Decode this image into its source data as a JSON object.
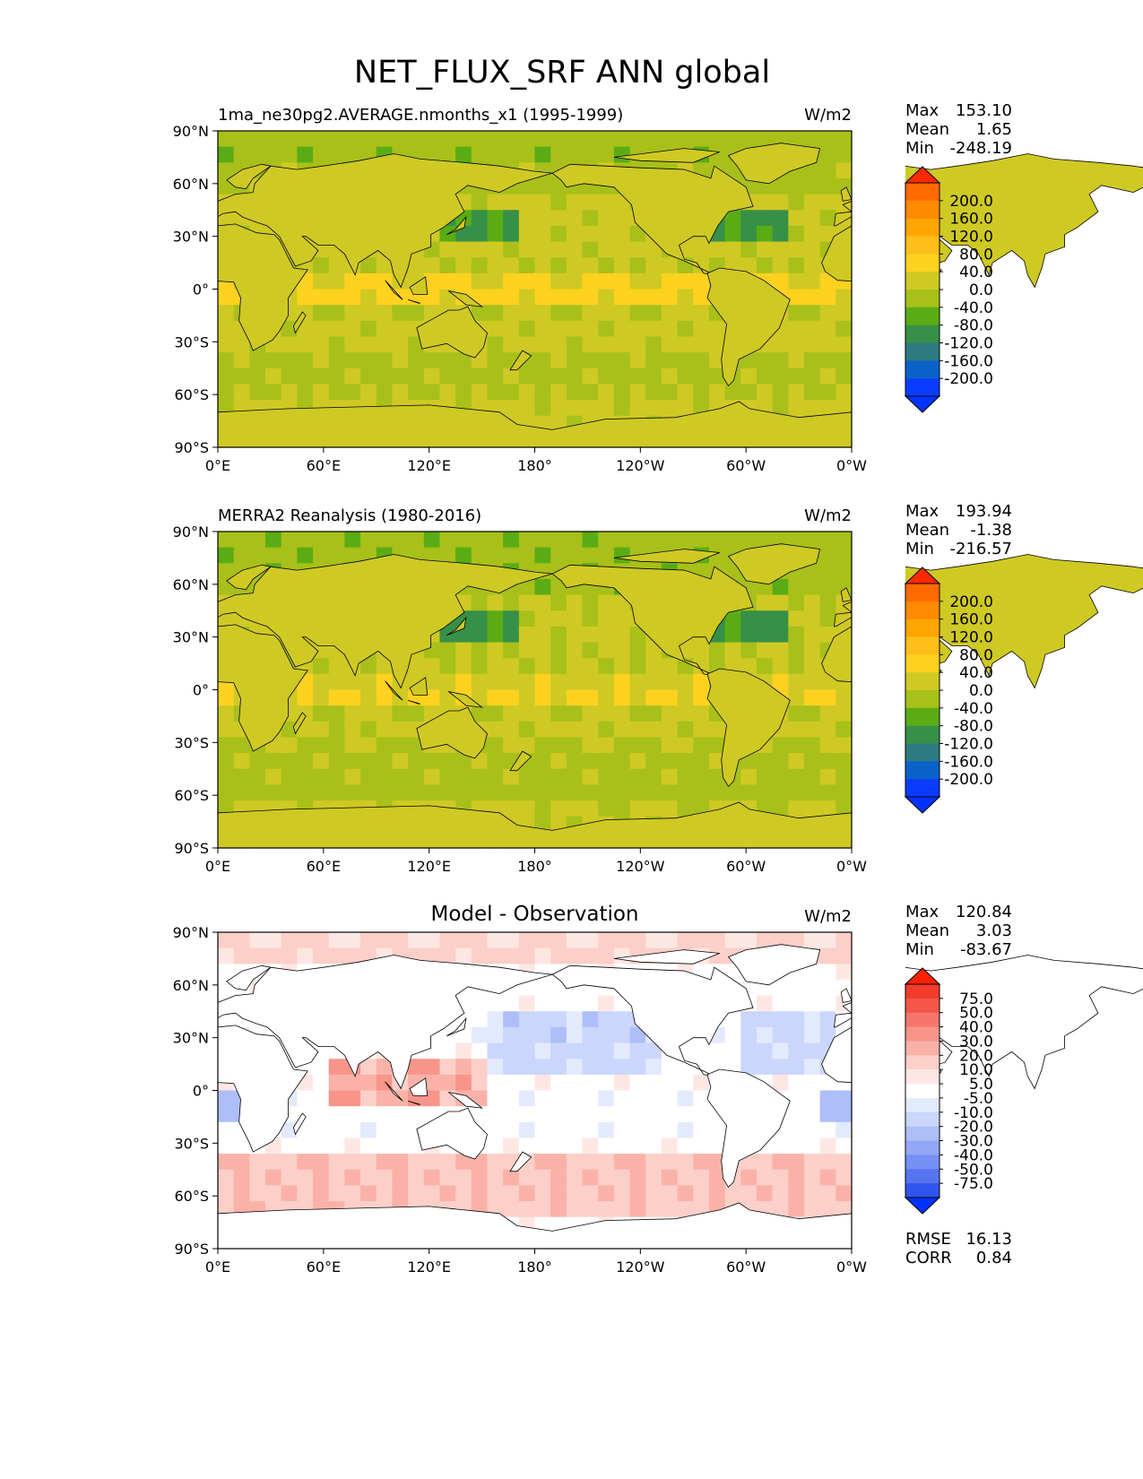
{
  "figure": {
    "title": "NET_FLUX_SRF ANN global"
  },
  "chart_data": [
    {
      "type": "heatmap",
      "title": "",
      "subtitle_left": "1ma_ne30pg2.AVERAGE.nmonths_x1 (1995-1999)",
      "units": "W/m2",
      "stats": [
        {
          "label": "Max",
          "value": "153.10"
        },
        {
          "label": "Mean",
          "value": "1.65"
        },
        {
          "label": "Min",
          "value": "-248.19"
        }
      ],
      "x_ticks": [
        "0°E",
        "60°E",
        "120°E",
        "180°",
        "120°W",
        "60°W",
        "0°W"
      ],
      "y_ticks": [
        "90°N",
        "60°N",
        "30°N",
        "0°",
        "30°S",
        "60°S",
        "90°S"
      ],
      "xlim": [
        0,
        360
      ],
      "ylim": [
        -90,
        90
      ],
      "colorbar": {
        "extend": "both",
        "labels": [
          "200.0",
          "160.0",
          "120.0",
          "80.0",
          "40.0",
          "0.0",
          "-40.0",
          "-80.0",
          "-120.0",
          "-160.0",
          "-200.0"
        ],
        "colors": [
          "#ff6a00",
          "#ff8a00",
          "#ffa500",
          "#ffbe1a",
          "#ffd21f",
          "#cfc924",
          "#a8c019",
          "#5aac14",
          "#379048",
          "#2b7b80",
          "#0a62c9",
          "#0a3cff"
        ],
        "over_color": "#ff2a00",
        "under_color": "#0033ff"
      },
      "field": "model"
    },
    {
      "type": "heatmap",
      "title": "",
      "subtitle_left": "MERRA2 Reanalysis (1980-2016)",
      "units": "W/m2",
      "stats": [
        {
          "label": "Max",
          "value": "193.94"
        },
        {
          "label": "Mean",
          "value": "-1.38"
        },
        {
          "label": "Min",
          "value": "-216.57"
        }
      ],
      "x_ticks": [
        "0°E",
        "60°E",
        "120°E",
        "180°",
        "120°W",
        "60°W",
        "0°W"
      ],
      "y_ticks": [
        "90°N",
        "60°N",
        "30°N",
        "0°",
        "30°S",
        "60°S",
        "90°S"
      ],
      "xlim": [
        0,
        360
      ],
      "ylim": [
        -90,
        90
      ],
      "colorbar": {
        "extend": "both",
        "labels": [
          "200.0",
          "160.0",
          "120.0",
          "80.0",
          "40.0",
          "0.0",
          "-40.0",
          "-80.0",
          "-120.0",
          "-160.0",
          "-200.0"
        ],
        "colors": [
          "#ff6a00",
          "#ff8a00",
          "#ffa500",
          "#ffbe1a",
          "#ffd21f",
          "#cfc924",
          "#a8c019",
          "#5aac14",
          "#379048",
          "#2b7b80",
          "#0a62c9",
          "#0a3cff"
        ],
        "over_color": "#ff2a00",
        "under_color": "#0033ff"
      },
      "field": "obs"
    },
    {
      "type": "heatmap",
      "title": "Model - Observation",
      "subtitle_left": "",
      "units": "W/m2",
      "stats": [
        {
          "label": "Max",
          "value": "120.84"
        },
        {
          "label": "Mean",
          "value": "3.03"
        },
        {
          "label": "Min",
          "value": "-83.67"
        }
      ],
      "extra_stats": [
        {
          "label": "RMSE",
          "value": "16.13"
        },
        {
          "label": "CORR",
          "value": "0.84"
        }
      ],
      "x_ticks": [
        "0°E",
        "60°E",
        "120°E",
        "180°",
        "120°W",
        "60°W",
        "0°W"
      ],
      "y_ticks": [
        "90°N",
        "60°N",
        "30°N",
        "0°",
        "30°S",
        "60°S",
        "90°S"
      ],
      "xlim": [
        0,
        360
      ],
      "ylim": [
        -90,
        90
      ],
      "colorbar": {
        "extend": "both",
        "labels": [
          "75.0",
          "50.0",
          "40.0",
          "30.0",
          "20.0",
          "10.0",
          "5.0",
          "-5.0",
          "-10.0",
          "-20.0",
          "-30.0",
          "-40.0",
          "-50.0",
          "-75.0"
        ],
        "colors": [
          "#f23c2e",
          "#f4564a",
          "#f6766b",
          "#f8958a",
          "#fab2a8",
          "#fccfc8",
          "#fee7e3",
          "#ffffff",
          "#e4eafd",
          "#cad6fb",
          "#aebef8",
          "#94a7f6",
          "#7690f3",
          "#5574f0",
          "#2f55ee"
        ],
        "over_color": "#ff2200",
        "under_color": "#0033ff"
      },
      "field": "diff"
    }
  ]
}
